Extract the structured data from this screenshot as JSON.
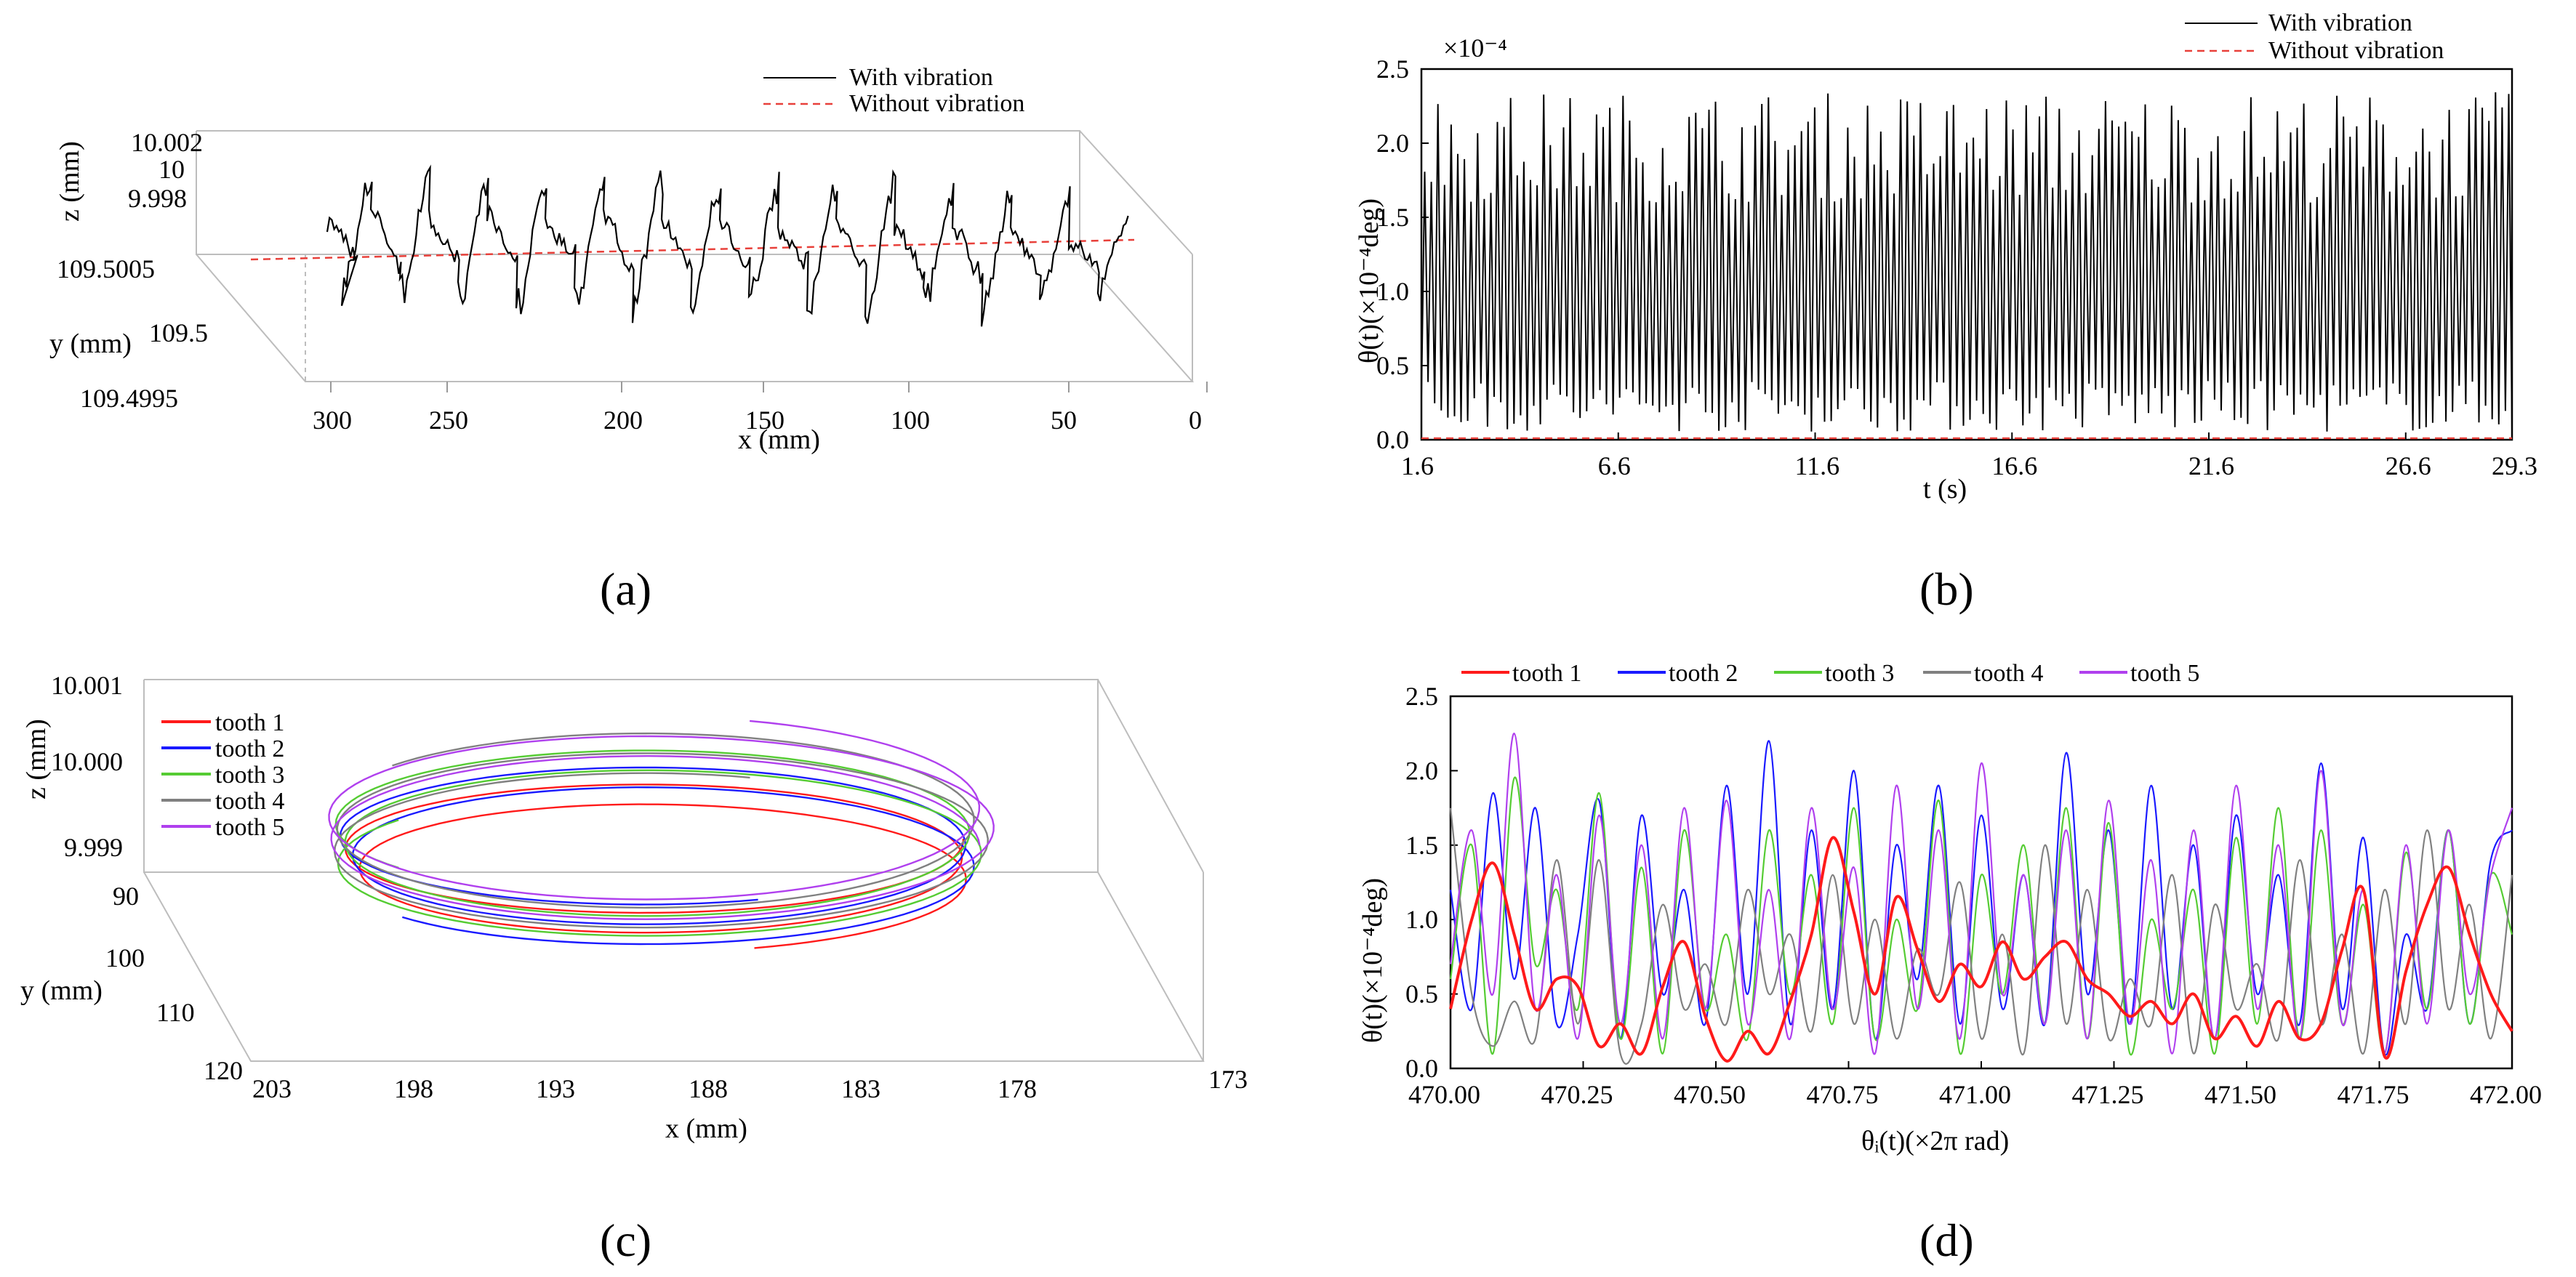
{
  "panel_labels": {
    "a": "(a)",
    "b": "(b)",
    "c": "(c)",
    "d": "(d)"
  },
  "chart_data": [
    {
      "id": "a",
      "type": "line",
      "projection": "3d",
      "legend": {
        "position": "top-right",
        "entries": [
          "With vibration",
          "Without vibration"
        ]
      },
      "xlabel": "x (mm)",
      "ylabel": "y (mm)",
      "zlabel": "z (mm)",
      "x_ticks": [
        "300",
        "250",
        "200",
        "150",
        "100",
        "50",
        "0"
      ],
      "y_ticks": [
        "109.5005",
        "109.5",
        "109.4995"
      ],
      "z_ticks": [
        "10.002",
        "10",
        "9.998"
      ],
      "xlim": [
        0,
        300
      ],
      "series": [
        {
          "name": "With vibration",
          "color": "#000000",
          "style": "solid",
          "x": [
            280,
            275,
            265,
            255,
            245,
            235,
            225,
            215,
            205,
            195,
            185,
            175,
            165,
            155,
            145,
            135,
            125,
            115,
            105,
            95,
            85,
            75,
            65,
            55,
            45,
            35,
            25,
            15
          ],
          "z": [
            10.0005,
            9.9985,
            10.0008,
            9.9982,
            10.0006,
            9.9984,
            10.0007,
            9.9981,
            10.0005,
            9.9983,
            10.0009,
            9.9982,
            10.0006,
            9.9984,
            10.0008,
            9.9982,
            10.0005,
            9.9983,
            10.0007,
            9.9981,
            10.0006,
            9.9984,
            10.0008,
            9.9982,
            10.0005,
            9.9984,
            10.0004,
            9.999
          ]
        },
        {
          "name": "Without vibration",
          "color": "#e8403a",
          "style": "dashed",
          "x": [
            300,
            0
          ],
          "z": [
            10.0,
            10.0
          ]
        }
      ]
    },
    {
      "id": "b",
      "type": "line",
      "legend": {
        "position": "top-right",
        "entries": [
          "With vibration",
          "Without vibration"
        ]
      },
      "multiplier": "×10⁻⁴",
      "xlabel": "t (s)",
      "ylabel": "θ(t)(×10⁻⁴deg)",
      "x_ticks": [
        "1.6",
        "6.6",
        "11.6",
        "16.6",
        "21.6",
        "26.6",
        "29.3"
      ],
      "y_ticks": [
        "0.0",
        "0.5",
        "1.0",
        "1.5",
        "2.0",
        "2.5"
      ],
      "xlim": [
        1.6,
        29.3
      ],
      "ylim": [
        0,
        2.5
      ],
      "series": [
        {
          "name": "With vibration",
          "color": "#000000",
          "style": "solid",
          "x_start": 1.6,
          "x_end": 29.3,
          "n_cycles": 165,
          "min": 0.05,
          "max_range": [
            1.6,
            2.35
          ]
        },
        {
          "name": "Without vibration",
          "color": "#e8403a",
          "style": "dashed",
          "x": [
            1.6,
            29.3
          ],
          "y": [
            0,
            0
          ]
        }
      ]
    },
    {
      "id": "c",
      "type": "line",
      "projection": "3d",
      "legend": {
        "position": "top-left",
        "entries": [
          "tooth 1",
          "tooth 2",
          "tooth 3",
          "tooth 4",
          "tooth 5"
        ]
      },
      "xlabel": "x (mm)",
      "ylabel": "y (mm)",
      "zlabel": "z (mm)",
      "x_ticks": [
        "203",
        "198",
        "193",
        "188",
        "183",
        "178",
        "173"
      ],
      "y_ticks": [
        "90",
        "100",
        "110",
        "120"
      ],
      "z_ticks": [
        "10.001",
        "10.000",
        "9.999"
      ],
      "series": [
        {
          "name": "tooth 1",
          "color": "#ff1a1a"
        },
        {
          "name": "tooth 2",
          "color": "#1a1aff"
        },
        {
          "name": "tooth 3",
          "color": "#55cc33"
        },
        {
          "name": "tooth 4",
          "color": "#808080"
        },
        {
          "name": "tooth 5",
          "color": "#b040ee"
        }
      ]
    },
    {
      "id": "d",
      "type": "line",
      "legend": {
        "position": "top",
        "entries": [
          "tooth 1",
          "tooth 2",
          "tooth 3",
          "tooth 4",
          "tooth 5"
        ]
      },
      "xlabel": "θᵢ(t)(×2π rad)",
      "ylabel": "θ(t)(×10⁻⁴deg)",
      "x_ticks": [
        "470.00",
        "470.25",
        "470.50",
        "470.75",
        "471.00",
        "471.25",
        "471.50",
        "471.75",
        "472.00"
      ],
      "y_ticks": [
        "0.0",
        "0.5",
        "1.0",
        "1.5",
        "2.0",
        "2.5"
      ],
      "xlim": [
        470.0,
        472.0
      ],
      "ylim": [
        0,
        2.5
      ],
      "series": [
        {
          "name": "tooth 1",
          "color": "#ff1a1a",
          "x": [
            470.0,
            470.04,
            470.08,
            470.12,
            470.16,
            470.2,
            470.24,
            470.28,
            470.32,
            470.36,
            470.4,
            470.44,
            470.48,
            470.52,
            470.56,
            470.6,
            470.64,
            470.68,
            470.72,
            470.76,
            470.8,
            470.84,
            470.88,
            470.92,
            470.96,
            471.0,
            471.04,
            471.08,
            471.12,
            471.16,
            471.2,
            471.24,
            471.28,
            471.32,
            471.36,
            471.4,
            471.44,
            471.48,
            471.52,
            471.56,
            471.6,
            471.64,
            471.68,
            471.72,
            471.76,
            471.8,
            471.84,
            471.88,
            471.92,
            471.96,
            472.0
          ],
          "y": [
            0.4,
            1.0,
            1.38,
            0.9,
            0.4,
            0.6,
            0.55,
            0.15,
            0.3,
            0.1,
            0.55,
            0.85,
            0.35,
            0.05,
            0.25,
            0.1,
            0.45,
            0.9,
            1.55,
            1.05,
            0.5,
            1.15,
            0.8,
            0.45,
            0.7,
            0.55,
            0.85,
            0.6,
            0.75,
            0.85,
            0.6,
            0.5,
            0.35,
            0.45,
            0.3,
            0.5,
            0.2,
            0.35,
            0.15,
            0.45,
            0.2,
            0.3,
            0.8,
            1.2,
            0.08,
            0.65,
            1.1,
            1.35,
            0.9,
            0.5,
            0.25
          ]
        },
        {
          "name": "tooth 2",
          "color": "#1a1aff",
          "x": [
            470.0,
            470.04,
            470.08,
            470.12,
            470.16,
            470.2,
            470.24,
            470.28,
            470.32,
            470.36,
            470.4,
            470.44,
            470.48,
            470.52,
            470.56,
            470.6,
            470.64,
            470.68,
            470.72,
            470.76,
            470.8,
            470.84,
            470.88,
            470.92,
            470.96,
            471.0,
            471.04,
            471.08,
            471.12,
            471.16,
            471.2,
            471.24,
            471.28,
            471.32,
            471.36,
            471.4,
            471.44,
            471.48,
            471.52,
            471.56,
            471.6,
            471.64,
            471.68,
            471.72,
            471.76,
            471.8,
            471.84,
            471.88,
            471.92,
            471.96,
            472.0
          ],
          "y": [
            1.2,
            0.4,
            1.85,
            0.6,
            1.75,
            0.3,
            0.9,
            1.8,
            0.2,
            1.7,
            0.5,
            1.2,
            0.3,
            1.9,
            0.5,
            2.2,
            0.3,
            1.6,
            0.4,
            2.0,
            0.2,
            1.5,
            0.6,
            1.9,
            0.3,
            1.7,
            0.4,
            1.3,
            0.3,
            2.12,
            0.5,
            1.6,
            0.3,
            1.9,
            0.4,
            1.5,
            0.2,
            1.7,
            0.5,
            1.3,
            0.3,
            2.05,
            0.4,
            1.55,
            0.1,
            0.9,
            0.4,
            1.6,
            0.3,
            1.4,
            1.6
          ]
        },
        {
          "name": "tooth 3",
          "color": "#55cc33",
          "x": [
            470.0,
            470.04,
            470.08,
            470.12,
            470.16,
            470.2,
            470.24,
            470.28,
            470.32,
            470.36,
            470.4,
            470.44,
            470.48,
            470.52,
            470.56,
            470.6,
            470.64,
            470.68,
            470.72,
            470.76,
            470.8,
            470.84,
            470.88,
            470.92,
            470.96,
            471.0,
            471.04,
            471.08,
            471.12,
            471.16,
            471.2,
            471.24,
            471.28,
            471.32,
            471.36,
            471.4,
            471.44,
            471.48,
            471.52,
            471.56,
            471.6,
            471.64,
            471.68,
            471.72,
            471.76,
            471.8,
            471.84,
            471.88,
            471.92,
            471.96,
            472.0
          ],
          "y": [
            0.6,
            1.5,
            0.1,
            1.95,
            0.7,
            1.2,
            0.4,
            1.85,
            0.2,
            1.35,
            0.1,
            1.6,
            0.4,
            0.9,
            0.2,
            1.6,
            0.5,
            1.3,
            0.3,
            1.75,
            0.2,
            1.0,
            0.4,
            1.8,
            0.1,
            1.3,
            0.5,
            1.5,
            0.3,
            1.75,
            0.2,
            1.65,
            0.1,
            1.0,
            0.4,
            1.2,
            0.1,
            1.55,
            0.3,
            1.75,
            0.2,
            1.6,
            0.3,
            1.1,
            0.1,
            1.45,
            0.4,
            1.6,
            0.3,
            1.3,
            0.9
          ]
        },
        {
          "name": "tooth 4",
          "color": "#808080",
          "x": [
            470.0,
            470.04,
            470.08,
            470.12,
            470.16,
            470.2,
            470.24,
            470.28,
            470.32,
            470.36,
            470.4,
            470.44,
            470.48,
            470.52,
            470.56,
            470.6,
            470.64,
            470.68,
            470.72,
            470.76,
            470.8,
            470.84,
            470.88,
            470.92,
            470.96,
            471.0,
            471.04,
            471.08,
            471.12,
            471.16,
            471.2,
            471.24,
            471.28,
            471.32,
            471.36,
            471.4,
            471.44,
            471.48,
            471.52,
            471.56,
            471.6,
            471.64,
            471.68,
            471.72,
            471.76,
            471.8,
            471.84,
            471.88,
            471.92,
            471.96,
            472.0
          ],
          "y": [
            1.75,
            0.5,
            0.15,
            0.45,
            0.2,
            1.4,
            0.3,
            1.4,
            0.1,
            0.3,
            1.1,
            0.4,
            0.7,
            0.3,
            1.2,
            0.5,
            0.9,
            0.25,
            1.3,
            0.3,
            1.0,
            0.2,
            0.8,
            0.5,
            1.25,
            0.2,
            0.9,
            0.1,
            1.5,
            0.3,
            1.2,
            0.2,
            0.6,
            0.3,
            1.3,
            0.1,
            1.1,
            0.4,
            0.7,
            0.2,
            1.4,
            0.3,
            0.9,
            0.1,
            1.2,
            0.3,
            1.6,
            0.4,
            1.1,
            0.2,
            1.3
          ]
        },
        {
          "name": "tooth 5",
          "color": "#b040ee",
          "x": [
            470.0,
            470.04,
            470.08,
            470.12,
            470.16,
            470.2,
            470.24,
            470.28,
            470.32,
            470.36,
            470.4,
            470.44,
            470.48,
            470.52,
            470.56,
            470.6,
            470.64,
            470.68,
            470.72,
            470.76,
            470.8,
            470.84,
            470.88,
            470.92,
            470.96,
            471.0,
            471.04,
            471.08,
            471.12,
            471.16,
            471.2,
            471.24,
            471.28,
            471.32,
            471.36,
            471.4,
            471.44,
            471.48,
            471.52,
            471.56,
            471.6,
            471.64,
            471.68,
            471.72,
            471.76,
            471.8,
            471.84,
            471.88,
            471.92,
            471.96,
            472.0
          ],
          "y": [
            0.7,
            1.6,
            0.5,
            2.25,
            0.4,
            1.3,
            0.2,
            1.7,
            0.3,
            1.5,
            0.2,
            1.75,
            0.4,
            1.8,
            0.3,
            1.2,
            0.2,
            1.75,
            0.4,
            1.35,
            0.1,
            1.9,
            0.4,
            1.6,
            0.2,
            2.05,
            0.5,
            1.3,
            0.3,
            1.6,
            0.2,
            1.8,
            0.3,
            1.4,
            0.1,
            1.6,
            0.2,
            1.9,
            0.4,
            1.5,
            0.2,
            2.0,
            0.3,
            1.2,
            0.1,
            1.5,
            0.3,
            1.6,
            0.5,
            1.3,
            1.75
          ]
        }
      ]
    }
  ]
}
